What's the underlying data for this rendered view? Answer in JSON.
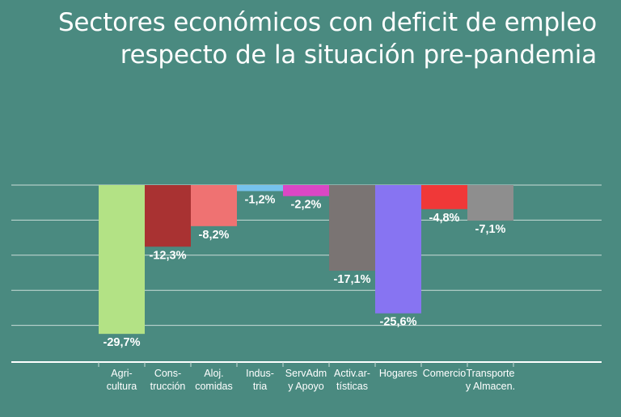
{
  "title_lines": [
    "Sectores económicos con deficit de empleo",
    "respecto de la situación pre-pandemia"
  ],
  "chart_data": {
    "type": "bar",
    "title": "Sectores económicos con deficit de empleo respecto de la situación pre-pandemia",
    "categories": [
      [
        "Agri-",
        "cultura"
      ],
      [
        "Cons-",
        "trucción"
      ],
      [
        "Aloj.",
        "comidas"
      ],
      [
        "Indus-",
        "tria"
      ],
      [
        "ServAdm",
        "y Apoyo"
      ],
      [
        "Activ.ar-",
        "tísticas"
      ],
      [
        "Hogares"
      ],
      [
        "Comercio"
      ],
      [
        "Transporte",
        "y Almacen."
      ]
    ],
    "values": [
      -29.7,
      -12.3,
      -8.2,
      -1.2,
      -2.2,
      -17.1,
      -25.6,
      -4.8,
      -7.1
    ],
    "value_labels": [
      "-29,7%",
      "-12,3%",
      "-8,2%",
      "-1,2%",
      "-2,2%",
      "-17,1%",
      "-25,6%",
      "-4,8%",
      "-7,1%"
    ],
    "colors": [
      "#b3e285",
      "#a93232",
      "#ef7272",
      "#76c2ec",
      "#db47c5",
      "#7a7473",
      "#8774f2",
      "#f03838",
      "#8e8e8e"
    ],
    "ylim": [
      -35,
      0
    ],
    "grid": true,
    "axis_color": "#ffffff",
    "grid_color": "#c9dcd8"
  }
}
